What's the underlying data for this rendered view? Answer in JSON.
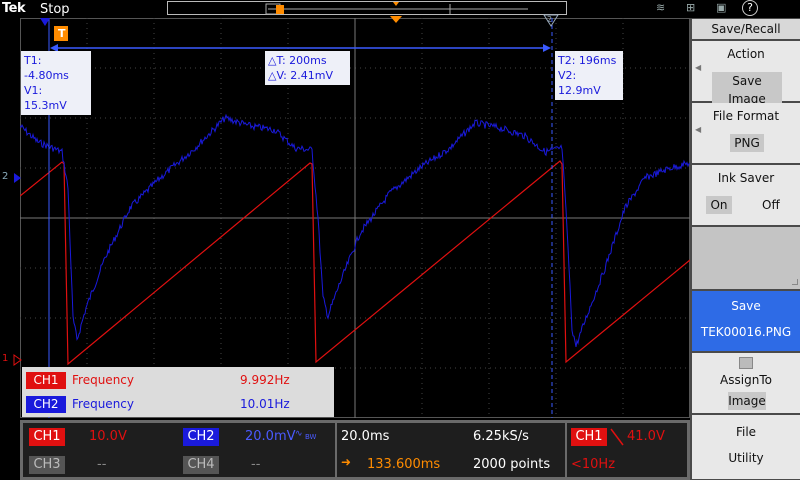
{
  "topbar": {
    "brand": "Tek",
    "run_state": "Stop",
    "help_icon_label": "?"
  },
  "cursors": {
    "t1": "T1: -4.80ms",
    "v1": "V1: 15.3mV",
    "dt": "△T: 200ms",
    "dv": "△V: 2.41mV",
    "t2": "T2: 196ms",
    "v2": "V2: 12.9mV",
    "trigger_marker": "T",
    "cursor2_label": "2"
  },
  "ref_markers": {
    "ch1": "1",
    "ch2": "2"
  },
  "measurements": [
    {
      "channel": "CH1",
      "label": "Frequency",
      "value": "9.992Hz",
      "color": "#e01010"
    },
    {
      "channel": "CH2",
      "label": "Frequency",
      "value": "10.01Hz",
      "color": "#1a1adc"
    }
  ],
  "status": {
    "ch1": {
      "label": "CH1",
      "scale": "10.0V"
    },
    "ch2": {
      "label": "CH2",
      "scale": "20.0mV",
      "bw": "BW"
    },
    "ch3": {
      "label": "CH3",
      "scale": "--"
    },
    "ch4": {
      "label": "CH4",
      "scale": "--"
    },
    "timebase": "20.0ms",
    "sample_rate": "6.25kS/s",
    "horizontal_position": "133.600ms",
    "record_length": "2000 points",
    "trigger_source": "CH1",
    "trigger_level": "41.0V",
    "trigger_freq": "<10Hz"
  },
  "menu": {
    "title": "Save/Recall",
    "action_label": "Action",
    "action_value": "Save Image",
    "format_label": "File Format",
    "format_value": "PNG",
    "ink_label": "Ink Saver",
    "ink_on": "On",
    "ink_off": "Off",
    "save_label": "Save",
    "save_file": "TEK00016.PNG",
    "assign_label": "AssignTo",
    "assign_value": "Image",
    "file_label": "File",
    "utility_label": "Utility"
  },
  "colors": {
    "ch1": "#e01010",
    "ch2": "#1a1adc",
    "trigger": "#ff8c00"
  },
  "chart_data": {
    "type": "line",
    "series": [
      {
        "name": "CH1",
        "color": "#e01010",
        "values": []
      },
      {
        "name": "CH2",
        "color": "#1a1adc",
        "values": []
      }
    ]
  }
}
